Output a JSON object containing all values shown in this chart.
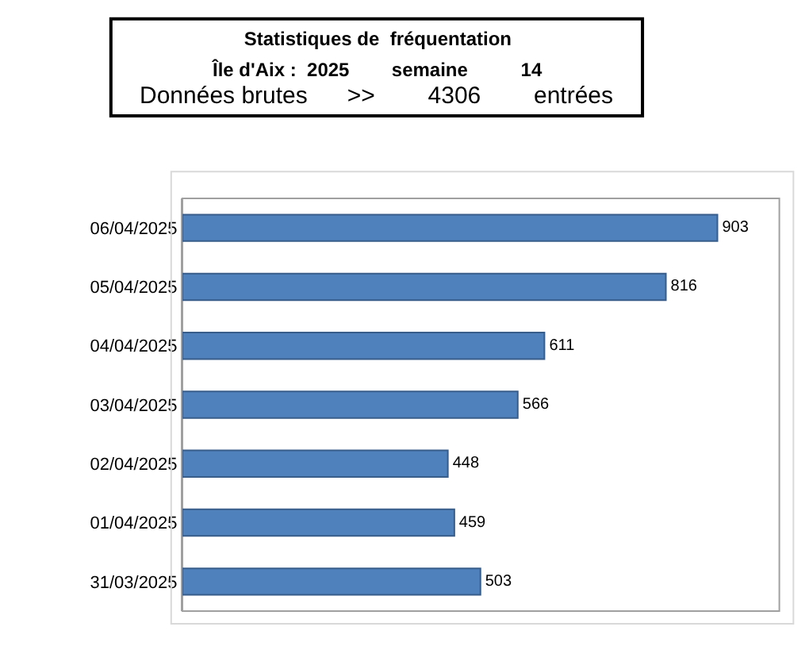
{
  "chart_data": {
    "type": "bar",
    "orientation": "horizontal",
    "title": "Statistiques de  fréquentation",
    "subtitle": "Île d'Aix :  2025        semaine          14",
    "annotations": [
      "Données brutes      >>        4306        entrées"
    ],
    "categories": [
      "06/04/2025",
      "05/04/2025",
      "04/04/2025",
      "03/04/2025",
      "02/04/2025",
      "01/04/2025",
      "31/03/2025"
    ],
    "values": [
      903,
      816,
      611,
      566,
      448,
      459,
      503
    ],
    "color": "#4f81bd",
    "data_labels": true,
    "legend": false
  }
}
